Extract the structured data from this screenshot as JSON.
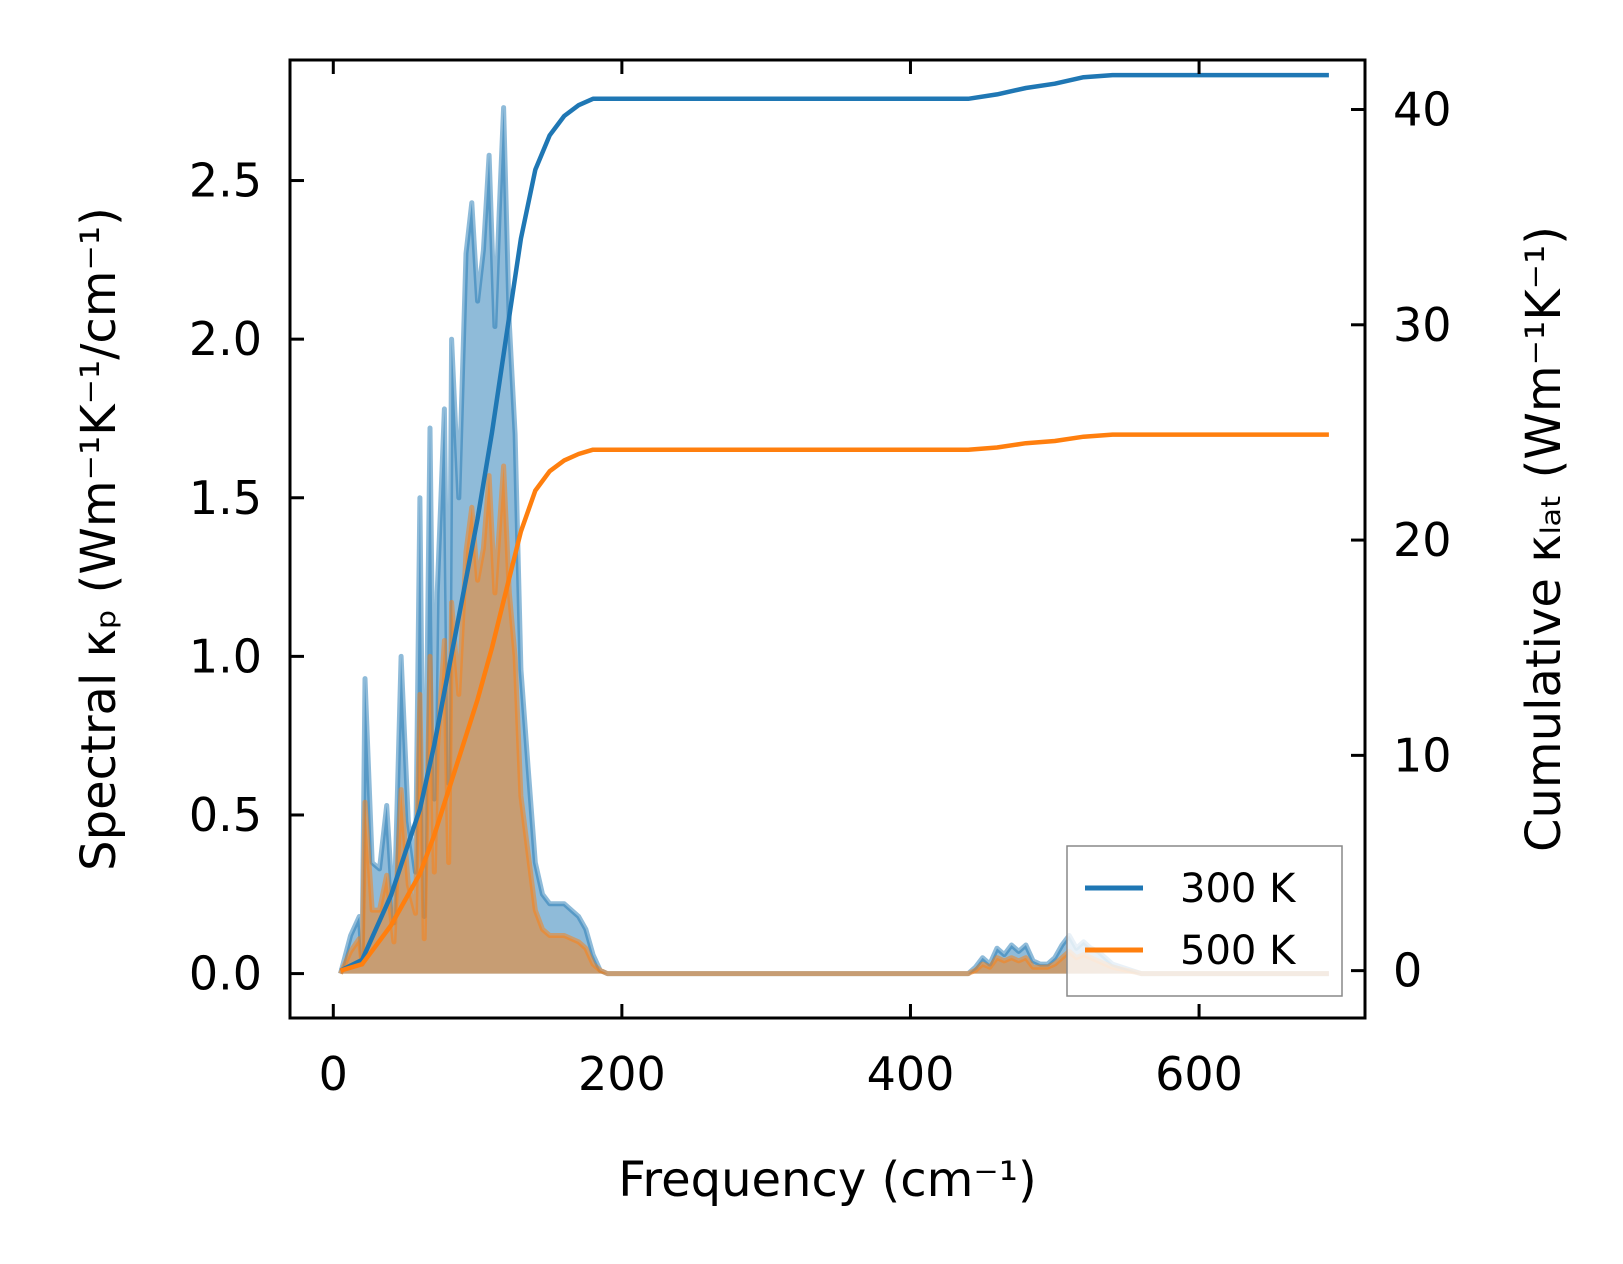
{
  "chart_data": {
    "type": "area",
    "xlabel": "Frequency (cm⁻¹)",
    "ylabel_left": "Spectral κₚ (Wm⁻¹K⁻¹/cm⁻¹)",
    "ylabel_right": "Cumulative κₗₐₜ (Wm⁻¹K⁻¹)",
    "xlim": [
      -30,
      715
    ],
    "ylim_left": [
      -0.14,
      2.88
    ],
    "ylim_right": [
      -2.2,
      42.3
    ],
    "x_ticks": [
      0,
      200,
      400,
      600
    ],
    "x_tick_labels": [
      "0",
      "200",
      "400",
      "600"
    ],
    "y_left_ticks": [
      0.0,
      0.5,
      1.0,
      1.5,
      2.0,
      2.5
    ],
    "y_left_tick_labels": [
      "0.0",
      "0.5",
      "1.0",
      "1.5",
      "2.0",
      "2.5"
    ],
    "y_right_ticks": [
      0,
      10,
      20,
      30,
      40
    ],
    "y_right_tick_labels": [
      "0",
      "10",
      "20",
      "30",
      "40"
    ],
    "legend_position": "lower right",
    "grid": false,
    "series": [
      {
        "name": "300 K",
        "color": "#1f77b4",
        "spectral": {
          "x": [
            5,
            12,
            18,
            20,
            22,
            27,
            32,
            37,
            42,
            47,
            52,
            57,
            60,
            63,
            67,
            70,
            72,
            77,
            80,
            82,
            87,
            92,
            96,
            100,
            104,
            108,
            112,
            115,
            118,
            122,
            126,
            130,
            135,
            140,
            145,
            150,
            160,
            170,
            175,
            180,
            185,
            190,
            300,
            440,
            445,
            450,
            455,
            460,
            465,
            470,
            475,
            480,
            485,
            490,
            495,
            500,
            505,
            510,
            515,
            520,
            525,
            530,
            540,
            560,
            600,
            690
          ],
          "y": [
            0.0,
            0.12,
            0.18,
            0.05,
            0.93,
            0.35,
            0.33,
            0.53,
            0.16,
            1.0,
            0.48,
            0.32,
            1.5,
            0.18,
            1.72,
            0.55,
            1.2,
            1.78,
            0.6,
            2.0,
            1.5,
            2.27,
            2.43,
            2.12,
            2.28,
            2.58,
            2.04,
            2.4,
            2.73,
            2.05,
            1.7,
            0.96,
            0.65,
            0.35,
            0.25,
            0.22,
            0.22,
            0.18,
            0.14,
            0.06,
            0.01,
            0.0,
            0.0,
            0.0,
            0.02,
            0.05,
            0.03,
            0.08,
            0.06,
            0.09,
            0.07,
            0.09,
            0.04,
            0.03,
            0.03,
            0.05,
            0.09,
            0.12,
            0.08,
            0.1,
            0.08,
            0.07,
            0.03,
            0.0,
            0.0,
            0.0
          ]
        },
        "cumulative": {
          "x": [
            5,
            20,
            30,
            40,
            50,
            60,
            70,
            80,
            90,
            100,
            110,
            120,
            130,
            140,
            150,
            160,
            170,
            180,
            190,
            300,
            440,
            460,
            480,
            500,
            520,
            540,
            560,
            690
          ],
          "y": [
            0,
            0.5,
            2.0,
            3.5,
            5.5,
            7.5,
            10.5,
            14,
            17.5,
            21,
            25,
            29.5,
            34,
            37.2,
            38.8,
            39.7,
            40.2,
            40.5,
            40.5,
            40.5,
            40.5,
            40.7,
            41.0,
            41.2,
            41.5,
            41.6,
            41.6,
            41.6
          ]
        }
      },
      {
        "name": "500 K",
        "color": "#ff7f0e",
        "spectral": {
          "x": [
            5,
            12,
            18,
            20,
            22,
            27,
            32,
            37,
            42,
            47,
            52,
            57,
            60,
            63,
            67,
            70,
            72,
            77,
            80,
            82,
            87,
            92,
            96,
            100,
            104,
            108,
            112,
            115,
            118,
            122,
            126,
            130,
            135,
            140,
            145,
            150,
            160,
            170,
            175,
            180,
            185,
            190,
            300,
            440,
            445,
            450,
            455,
            460,
            465,
            470,
            475,
            480,
            485,
            490,
            495,
            500,
            505,
            510,
            515,
            520,
            525,
            530,
            540,
            560,
            600,
            690
          ],
          "y": [
            0.0,
            0.07,
            0.11,
            0.03,
            0.54,
            0.2,
            0.2,
            0.31,
            0.1,
            0.58,
            0.28,
            0.19,
            0.88,
            0.11,
            1.0,
            0.32,
            0.7,
            1.05,
            0.35,
            1.17,
            0.88,
            1.33,
            1.47,
            1.24,
            1.34,
            1.57,
            1.2,
            1.4,
            1.6,
            1.2,
            1.0,
            0.56,
            0.38,
            0.2,
            0.14,
            0.12,
            0.12,
            0.1,
            0.08,
            0.03,
            0.01,
            0.0,
            0.0,
            0.0,
            0.01,
            0.03,
            0.02,
            0.05,
            0.04,
            0.05,
            0.04,
            0.05,
            0.02,
            0.02,
            0.02,
            0.03,
            0.05,
            0.07,
            0.05,
            0.06,
            0.05,
            0.04,
            0.02,
            0.0,
            0.0,
            0.0
          ]
        },
        "cumulative": {
          "x": [
            5,
            20,
            30,
            40,
            50,
            60,
            70,
            80,
            90,
            100,
            110,
            120,
            130,
            140,
            150,
            160,
            170,
            180,
            190,
            300,
            440,
            460,
            480,
            500,
            520,
            540,
            560,
            690
          ],
          "y": [
            0,
            0.3,
            1.2,
            2.1,
            3.3,
            4.5,
            6.3,
            8.4,
            10.5,
            12.6,
            15,
            17.7,
            20.4,
            22.3,
            23.2,
            23.7,
            24.0,
            24.2,
            24.2,
            24.2,
            24.2,
            24.3,
            24.5,
            24.6,
            24.8,
            24.9,
            24.9,
            24.9
          ]
        }
      }
    ]
  }
}
